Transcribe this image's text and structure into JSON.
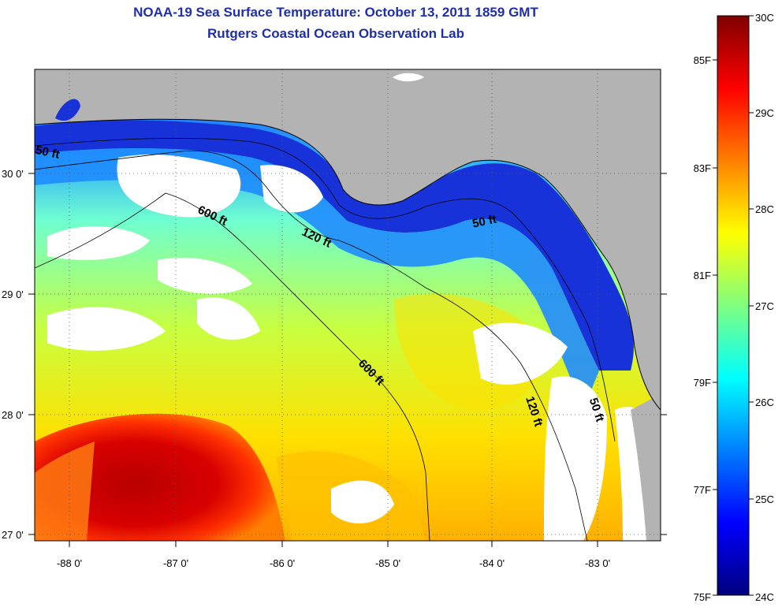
{
  "title": "NOAA-19 Sea Surface Temperature:  October 13, 2011 1859 GMT",
  "subtitle": "Rutgers Coastal Ocean Observation Lab",
  "longitude_labels": [
    "-88 0'",
    "-87 0'",
    "-86 0'",
    "-85 0'",
    "-84 0'",
    "-83 0'"
  ],
  "latitude_labels": [
    "30 0'",
    "29 0'",
    "28 0'",
    "27 0'"
  ],
  "depth_contour_labels": [
    "50 ft",
    "600 ft",
    "120 ft",
    "50 ft",
    "600 ft",
    "120 ft",
    "50 ft"
  ],
  "colorbar": {
    "celsius_labels": [
      "30C",
      "29C",
      "28C",
      "27C",
      "26C",
      "25C",
      "24C"
    ],
    "fahrenheit_labels": [
      "85F",
      "83F",
      "81F",
      "79F",
      "77F",
      "75F"
    ],
    "colors": [
      "#00007f",
      "#0000ff",
      "#007fff",
      "#00ffff",
      "#7fff7f",
      "#ffff00",
      "#ff7f00",
      "#ff0000",
      "#7f0000"
    ]
  },
  "colors": {
    "land": "#b3b3b3",
    "cloud": "#ffffff",
    "title": "#1f2fa8"
  }
}
